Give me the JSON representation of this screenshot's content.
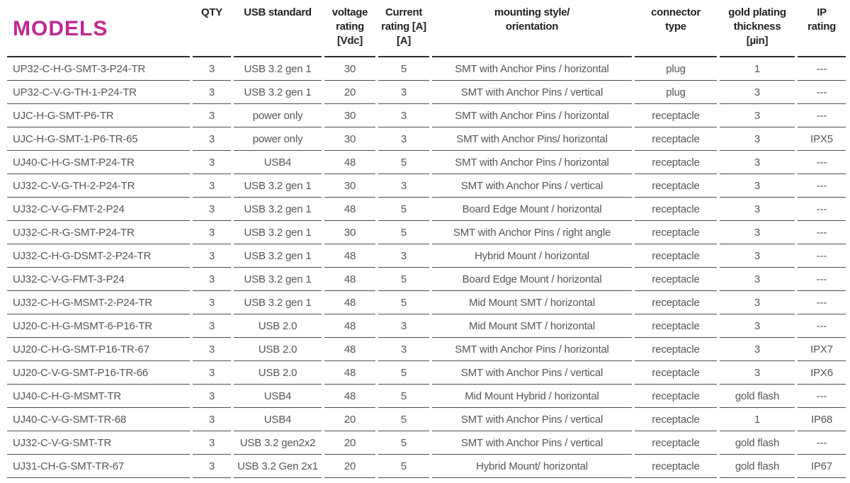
{
  "theme": {
    "accent_magenta": "#c1278e",
    "header_text": "#232323",
    "body_text": "#55565a",
    "header_rule": "#2e2e2e",
    "row_rule": "#4c4c4e"
  },
  "table": {
    "title": "MODELS",
    "columns": [
      {
        "key": "model",
        "label": ""
      },
      {
        "key": "qty",
        "label": "QTY"
      },
      {
        "key": "usb_standard",
        "label": "USB standard"
      },
      {
        "key": "voltage_rating",
        "label": "voltage\nrating\n[Vdc]"
      },
      {
        "key": "current_rating",
        "label": "Current\nrating [A]\n[A]"
      },
      {
        "key": "mounting",
        "label": "mounting style/\norientation"
      },
      {
        "key": "connector_type",
        "label": "connector\ntype"
      },
      {
        "key": "gold_plating",
        "label": "gold plating\nthickness\n[µin]"
      },
      {
        "key": "ip_rating",
        "label": "IP\nrating"
      }
    ],
    "rows": [
      {
        "model": "UP32-C-H-G-SMT-3-P24-TR",
        "qty": "3",
        "usb_standard": "USB 3.2 gen 1",
        "voltage_rating": "30",
        "current_rating": "5",
        "mounting": "SMT with Anchor Pins / horizontal",
        "connector_type": "plug",
        "gold_plating": "1",
        "ip_rating": "---"
      },
      {
        "model": "UP32-C-V-G-TH-1-P24-TR",
        "qty": "3",
        "usb_standard": "USB 3.2 gen 1",
        "voltage_rating": "20",
        "current_rating": "3",
        "mounting": "SMT with Anchor Pins / vertical",
        "connector_type": "plug",
        "gold_plating": "3",
        "ip_rating": "---"
      },
      {
        "model": "UJC-H-G-SMT-P6-TR",
        "qty": "3",
        "usb_standard": "power only",
        "voltage_rating": "30",
        "current_rating": "3",
        "mounting": "SMT with Anchor Pins / horizontal",
        "connector_type": "receptacle",
        "gold_plating": "3",
        "ip_rating": "---"
      },
      {
        "model": "UJC-H-G-SMT-1-P6-TR-65",
        "qty": "3",
        "usb_standard": "power only",
        "voltage_rating": "30",
        "current_rating": "3",
        "mounting": "SMT with Anchor Pins/ horizontal",
        "connector_type": "receptacle",
        "gold_plating": "3",
        "ip_rating": "IPX5"
      },
      {
        "model": "UJ40-C-H-G-SMT-P24-TR",
        "qty": "3",
        "usb_standard": "USB4",
        "voltage_rating": "48",
        "current_rating": "5",
        "mounting": "SMT with Anchor Pins / horizontal",
        "connector_type": "receptacle",
        "gold_plating": "3",
        "ip_rating": "---"
      },
      {
        "model": "UJ32-C-V-G-TH-2-P24-TR",
        "qty": "3",
        "usb_standard": "USB 3.2 gen 1",
        "voltage_rating": "30",
        "current_rating": "3",
        "mounting": "SMT with Anchor Pins / vertical",
        "connector_type": "receptacle",
        "gold_plating": "3",
        "ip_rating": "---"
      },
      {
        "model": "UJ32-C-V-G-FMT-2-P24",
        "qty": "3",
        "usb_standard": "USB 3.2 gen 1",
        "voltage_rating": "48",
        "current_rating": "5",
        "mounting": "Board Edge Mount / horizontal",
        "connector_type": "receptacle",
        "gold_plating": "3",
        "ip_rating": "---"
      },
      {
        "model": "UJ32-C-R-G-SMT-P24-TR",
        "qty": "3",
        "usb_standard": "USB 3.2 gen 1",
        "voltage_rating": "30",
        "current_rating": "5",
        "mounting": "SMT with Anchor Pins / right angle",
        "connector_type": "receptacle",
        "gold_plating": "3",
        "ip_rating": "---"
      },
      {
        "model": "UJ32-C-H-G-DSMT-2-P24-TR",
        "qty": "3",
        "usb_standard": "USB 3.2 gen 1",
        "voltage_rating": "48",
        "current_rating": "3",
        "mounting": "Hybrid Mount / horizontal",
        "connector_type": "receptacle",
        "gold_plating": "3",
        "ip_rating": "---"
      },
      {
        "model": "UJ32-C-V-G-FMT-3-P24",
        "qty": "3",
        "usb_standard": "USB 3.2 gen 1",
        "voltage_rating": "48",
        "current_rating": "5",
        "mounting": "Board Edge Mount / horizontal",
        "connector_type": "receptacle",
        "gold_plating": "3",
        "ip_rating": "---"
      },
      {
        "model": "UJ32-C-H-G-MSMT-2-P24-TR",
        "qty": "3",
        "usb_standard": "USB 3.2 gen 1",
        "voltage_rating": "48",
        "current_rating": "5",
        "mounting": "Mid Mount SMT / horizontal",
        "connector_type": "receptacle",
        "gold_plating": "3",
        "ip_rating": "---"
      },
      {
        "model": "UJ20-C-H-G-MSMT-6-P16-TR",
        "qty": "3",
        "usb_standard": "USB 2.0",
        "voltage_rating": "48",
        "current_rating": "3",
        "mounting": "Mid Mount SMT / horizontal",
        "connector_type": "receptacle",
        "gold_plating": "3",
        "ip_rating": "---"
      },
      {
        "model": "UJ20-C-H-G-SMT-P16-TR-67",
        "qty": "3",
        "usb_standard": "USB 2.0",
        "voltage_rating": "48",
        "current_rating": "3",
        "mounting": "SMT with Anchor Pins / horizontal",
        "connector_type": "receptacle",
        "gold_plating": "3",
        "ip_rating": "IPX7"
      },
      {
        "model": "UJ20-C-V-G-SMT-P16-TR-66",
        "qty": "3",
        "usb_standard": "USB 2.0",
        "voltage_rating": "48",
        "current_rating": "5",
        "mounting": "SMT with Anchor Pins / vertical",
        "connector_type": "receptacle",
        "gold_plating": "3",
        "ip_rating": "IPX6"
      },
      {
        "model": "UJ40-C-H-G-MSMT-TR",
        "qty": "3",
        "usb_standard": "USB4",
        "voltage_rating": "48",
        "current_rating": "5",
        "mounting": "Mid Mount Hybrid / horizontal",
        "connector_type": "receptacle",
        "gold_plating": "gold flash",
        "ip_rating": "---"
      },
      {
        "model": "UJ40-C-V-G-SMT-TR-68",
        "qty": "3",
        "usb_standard": "USB4",
        "voltage_rating": "20",
        "current_rating": "5",
        "mounting": "SMT with Anchor Pins / vertical",
        "connector_type": "receptacle",
        "gold_plating": "1",
        "ip_rating": "IP68"
      },
      {
        "model": "UJ32-C-V-G-SMT-TR",
        "qty": "3",
        "usb_standard": "USB 3.2 gen2x2",
        "voltage_rating": "20",
        "current_rating": "5",
        "mounting": "SMT with Anchor Pins / vertical",
        "connector_type": "receptacle",
        "gold_plating": "gold flash",
        "ip_rating": "---"
      },
      {
        "model": "UJ31-CH-G-SMT-TR-67",
        "qty": "3",
        "usb_standard": "USB 3.2 Gen 2x1",
        "voltage_rating": "20",
        "current_rating": "5",
        "mounting": "Hybrid Mount/ horizontal",
        "connector_type": "receptacle",
        "gold_plating": "gold flash",
        "ip_rating": "IP67"
      }
    ]
  }
}
